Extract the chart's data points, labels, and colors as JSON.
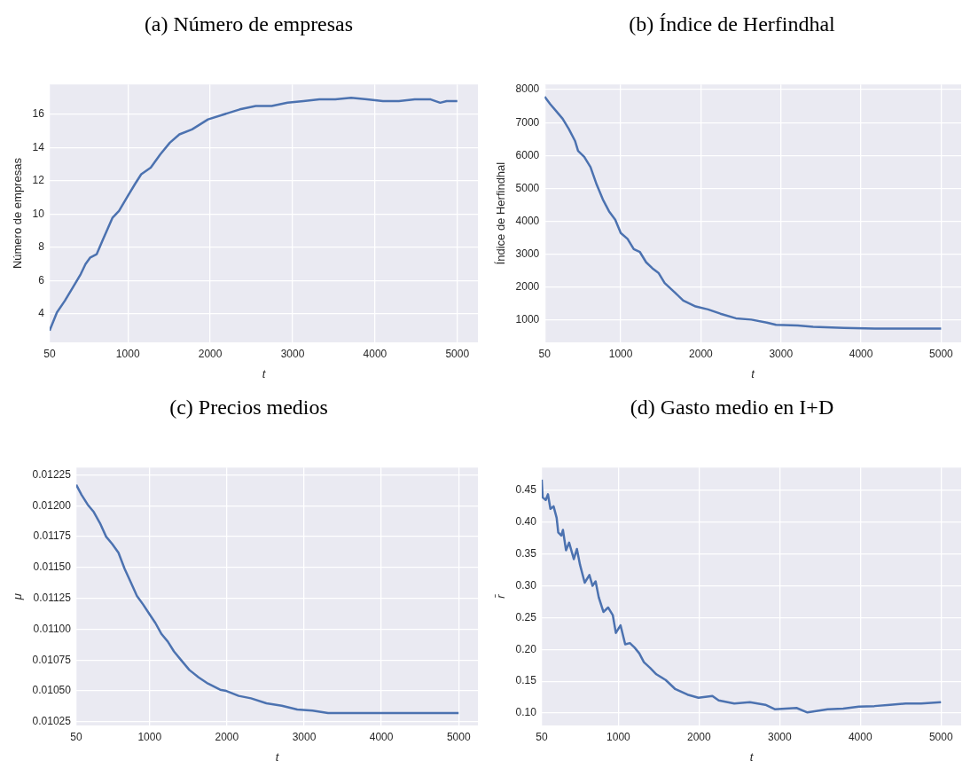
{
  "chart_data": [
    {
      "type": "line",
      "title": "(a) Número de empresas",
      "xlabel": "t",
      "ylabel": "Número de empresas",
      "color": "#4c72b0",
      "grid": true,
      "x": [
        50,
        139,
        235,
        332,
        428,
        486,
        544,
        622,
        699,
        815,
        892,
        1000,
        1085,
        1162,
        1278,
        1394,
        1510,
        1626,
        1780,
        1973,
        2166,
        2359,
        2553,
        2746,
        2939,
        3132,
        3325,
        3518,
        3711,
        3904,
        4097,
        4290,
        4484,
        4677,
        4792,
        4870,
        5000
      ],
      "values": [
        3.0,
        4.1,
        4.8,
        5.6,
        6.4,
        7.0,
        7.4,
        7.6,
        8.5,
        9.8,
        10.2,
        11.1,
        11.8,
        12.4,
        12.8,
        13.6,
        14.3,
        14.8,
        15.1,
        15.7,
        16.0,
        16.3,
        16.5,
        16.5,
        16.7,
        16.8,
        16.9,
        16.9,
        17.0,
        16.9,
        16.8,
        16.8,
        16.9,
        16.9,
        16.7,
        16.8,
        16.8
      ],
      "xlim": [
        50,
        5250
      ],
      "xticks": [
        50,
        1000,
        2000,
        3000,
        4000,
        5000
      ],
      "ylim": [
        2.3,
        17.8
      ],
      "yticks": [
        4,
        6,
        8,
        10,
        12,
        14,
        16
      ]
    },
    {
      "type": "line",
      "title": "(b) Índice de Herfindhal",
      "xlabel": "t",
      "ylabel": "Índice de Herfindhal",
      "color": "#4c72b0",
      "grid": true,
      "x": [
        50,
        120,
        197,
        274,
        351,
        428,
        467,
        544,
        622,
        699,
        776,
        853,
        931,
        1000,
        1085,
        1162,
        1239,
        1317,
        1394,
        1471,
        1548,
        1664,
        1780,
        1935,
        2089,
        2244,
        2437,
        2630,
        2823,
        2939,
        3209,
        3402,
        3788,
        4175,
        4561,
        5000
      ],
      "values": [
        7790,
        7560,
        7340,
        7120,
        6810,
        6450,
        6140,
        5960,
        5650,
        5120,
        4670,
        4310,
        4050,
        3650,
        3470,
        3160,
        3070,
        2760,
        2580,
        2440,
        2130,
        1870,
        1600,
        1420,
        1330,
        1200,
        1060,
        1020,
        930,
        860,
        840,
        800,
        770,
        750,
        750,
        750
      ],
      "xlim": [
        50,
        5250
      ],
      "xticks": [
        50,
        1000,
        2000,
        3000,
        4000,
        5000
      ],
      "ylim": [
        330,
        8160
      ],
      "yticks": [
        1000,
        2000,
        3000,
        4000,
        5000,
        6000,
        7000,
        8000
      ]
    },
    {
      "type": "line",
      "title": "(c) Precios medios",
      "xlabel": "t",
      "ylabel": "μ",
      "color": "#4c72b0",
      "grid": true,
      "x": [
        50,
        118,
        198,
        277,
        357,
        437,
        517,
        597,
        676,
        756,
        836,
        916,
        1000,
        1075,
        1155,
        1235,
        1315,
        1394,
        1514,
        1634,
        1754,
        1913,
        1993,
        2153,
        2312,
        2512,
        2711,
        2911,
        3110,
        3310,
        3509,
        3908,
        4307,
        5000
      ],
      "values": [
        0.01217,
        0.01209,
        0.01201,
        0.01195,
        0.01186,
        0.01175,
        0.01169,
        0.01162,
        0.01149,
        0.01138,
        0.01127,
        0.0112,
        0.01112,
        0.01105,
        0.01096,
        0.0109,
        0.01082,
        0.01076,
        0.01067,
        0.01061,
        0.01056,
        0.01051,
        0.0105,
        0.01046,
        0.01044,
        0.0104,
        0.01038,
        0.01035,
        0.01034,
        0.01032,
        0.01032,
        0.01032,
        0.01032,
        0.01032
      ],
      "xlim": [
        50,
        5250
      ],
      "xticks": [
        50,
        1000,
        2000,
        3000,
        4000,
        5000
      ],
      "ylim": [
        0.01022,
        0.01231
      ],
      "yticks": [
        0.01025,
        {
          "value": 0.0105,
          "label": "0.01050"
        },
        0.01075,
        {
          "value": 0.011,
          "label": "0.01100"
        },
        0.01125,
        {
          "value": 0.0115,
          "label": "0.01150"
        },
        0.01175,
        {
          "value": 0.012,
          "label": "0.01200"
        },
        0.01225
      ]
    },
    {
      "type": "line",
      "title": "(d) Gasto medio en I+D",
      "xlabel": "t",
      "ylabel": "r̄",
      "color": "#4c72b0",
      "grid": true,
      "x": [
        50,
        62,
        100,
        127,
        158,
        197,
        235,
        255,
        293,
        313,
        351,
        390,
        448,
        486,
        525,
        583,
        641,
        680,
        718,
        757,
        815,
        873,
        931,
        969,
        1027,
        1085,
        1143,
        1201,
        1259,
        1317,
        1394,
        1471,
        1587,
        1703,
        1857,
        1993,
        2166,
        2244,
        2437,
        2630,
        2823,
        2939,
        3209,
        3344,
        3595,
        3788,
        3981,
        4175,
        4368,
        4561,
        4754,
        5000
      ],
      "values": [
        0.467,
        0.439,
        0.435,
        0.444,
        0.421,
        0.425,
        0.407,
        0.384,
        0.379,
        0.388,
        0.356,
        0.368,
        0.342,
        0.358,
        0.333,
        0.305,
        0.317,
        0.3,
        0.307,
        0.282,
        0.259,
        0.266,
        0.254,
        0.226,
        0.238,
        0.208,
        0.21,
        0.203,
        0.194,
        0.18,
        0.171,
        0.161,
        0.152,
        0.138,
        0.129,
        0.124,
        0.127,
        0.12,
        0.115,
        0.117,
        0.113,
        0.106,
        0.108,
        0.101,
        0.106,
        0.107,
        0.11,
        0.111,
        0.113,
        0.115,
        0.115,
        0.117
      ],
      "xlim": [
        50,
        5250
      ],
      "xticks": [
        50,
        1000,
        2000,
        3000,
        4000,
        5000
      ],
      "ylim": [
        0.0805,
        0.486
      ],
      "yticks": [
        {
          "value": 0.1,
          "label": "0.10"
        },
        0.15,
        {
          "value": 0.2,
          "label": "0.20"
        },
        0.25,
        {
          "value": 0.3,
          "label": "0.30"
        },
        0.35,
        {
          "value": 0.4,
          "label": "0.40"
        },
        0.45
      ]
    }
  ]
}
